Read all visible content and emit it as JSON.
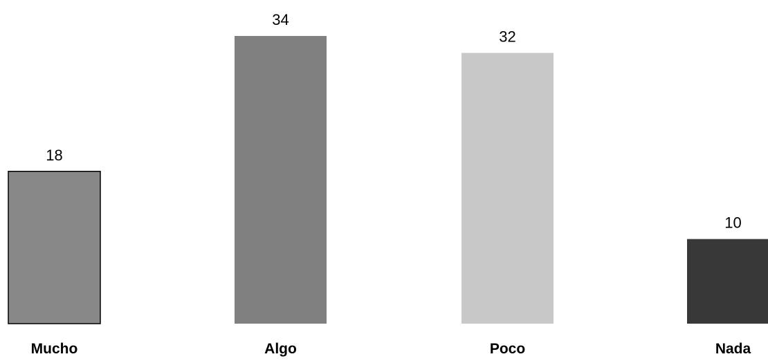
{
  "chart_data": {
    "type": "bar",
    "categories": [
      "Mucho",
      "Algo",
      "Poco",
      "Nada"
    ],
    "values": [
      18,
      34,
      32,
      10
    ],
    "bar_colors": [
      "#888888",
      "#808080",
      "#c8c8c8",
      "#383838"
    ],
    "bar_outline": [
      true,
      false,
      false,
      false
    ],
    "outline_color": "#000000",
    "ylim": [
      0,
      34
    ],
    "grid": false,
    "legend": false
  }
}
